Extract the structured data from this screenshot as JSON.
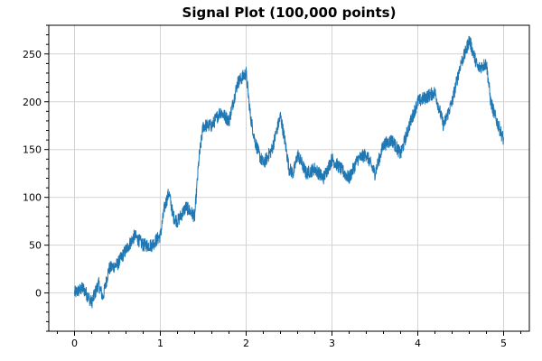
{
  "chart_data": {
    "type": "line",
    "title": "Signal Plot (100,000 points)",
    "xlabel": "",
    "ylabel": "",
    "xlim": [
      -0.3,
      5.3
    ],
    "ylim": [
      -40,
      280
    ],
    "xticks": [
      0,
      1,
      2,
      3,
      4,
      5
    ],
    "yticks": [
      0,
      50,
      100,
      150,
      200,
      250
    ],
    "grid": true,
    "legend": "none",
    "series": [
      {
        "color": "#1f77b4",
        "num_points": 100000,
        "x_start": 0,
        "x_end": 5,
        "x": [
          0,
          0.1,
          0.2,
          0.28,
          0.33,
          0.4,
          0.5,
          0.6,
          0.7,
          0.8,
          0.9,
          1.0,
          1.05,
          1.1,
          1.15,
          1.2,
          1.3,
          1.4,
          1.45,
          1.5,
          1.6,
          1.7,
          1.8,
          1.9,
          2.0,
          2.05,
          2.1,
          2.15,
          2.2,
          2.3,
          2.4,
          2.45,
          2.5,
          2.55,
          2.6,
          2.7,
          2.8,
          2.9,
          3.0,
          3.1,
          3.2,
          3.3,
          3.4,
          3.5,
          3.6,
          3.7,
          3.8,
          3.9,
          4.0,
          4.1,
          4.2,
          4.3,
          4.4,
          4.5,
          4.55,
          4.6,
          4.7,
          4.8,
          4.85,
          4.9,
          5.0
        ],
        "y": [
          0,
          5,
          -10,
          10,
          -5,
          25,
          30,
          45,
          60,
          50,
          50,
          60,
          90,
          105,
          80,
          75,
          90,
          80,
          140,
          175,
          175,
          190,
          180,
          220,
          230,
          185,
          160,
          145,
          135,
          150,
          185,
          160,
          130,
          125,
          145,
          125,
          130,
          120,
          140,
          130,
          120,
          140,
          145,
          125,
          155,
          160,
          145,
          175,
          200,
          205,
          210,
          175,
          200,
          240,
          250,
          265,
          235,
          240,
          200,
          185,
          160
        ]
      }
    ]
  }
}
